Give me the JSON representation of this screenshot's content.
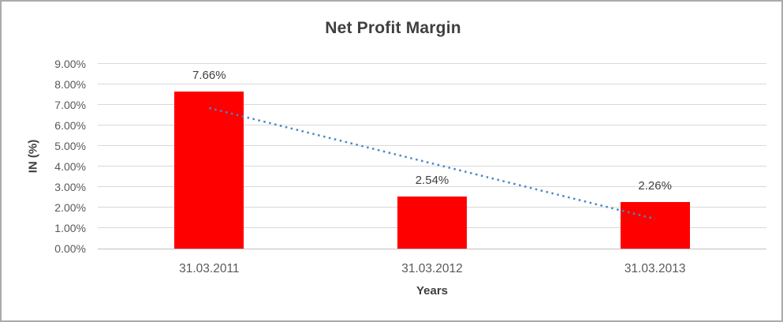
{
  "chart_data": {
    "type": "bar",
    "title": "Net Profit Margin",
    "xlabel": "Years",
    "ylabel": "IN (%)",
    "categories": [
      "31.03.2011",
      "31.03.2012",
      "31.03.2013"
    ],
    "values": [
      7.66,
      2.54,
      2.26
    ],
    "data_labels": [
      "7.66%",
      "2.54%",
      "2.26%"
    ],
    "ylim": [
      0,
      9
    ],
    "ytick_labels": [
      "0.00%",
      "1.00%",
      "2.00%",
      "3.00%",
      "4.00%",
      "5.00%",
      "6.00%",
      "7.00%",
      "8.00%",
      "9.00%"
    ],
    "grid": true,
    "legend": "none",
    "bar_color": "#FF0000",
    "trendline": {
      "type": "linear",
      "style": "dotted",
      "color": "#4A86C8",
      "start_value": 6.85,
      "end_value": 1.45
    }
  },
  "colors": {
    "title_text": "#3F3F3F",
    "axis_title_text": "#3F3F3F",
    "tick_text": "#595959",
    "data_label_text": "#404040",
    "gridline": "#D9D9D9",
    "axis_line": "#BFBFBF",
    "background": "#FFFFFF",
    "frame_border": "#ABABAB"
  }
}
